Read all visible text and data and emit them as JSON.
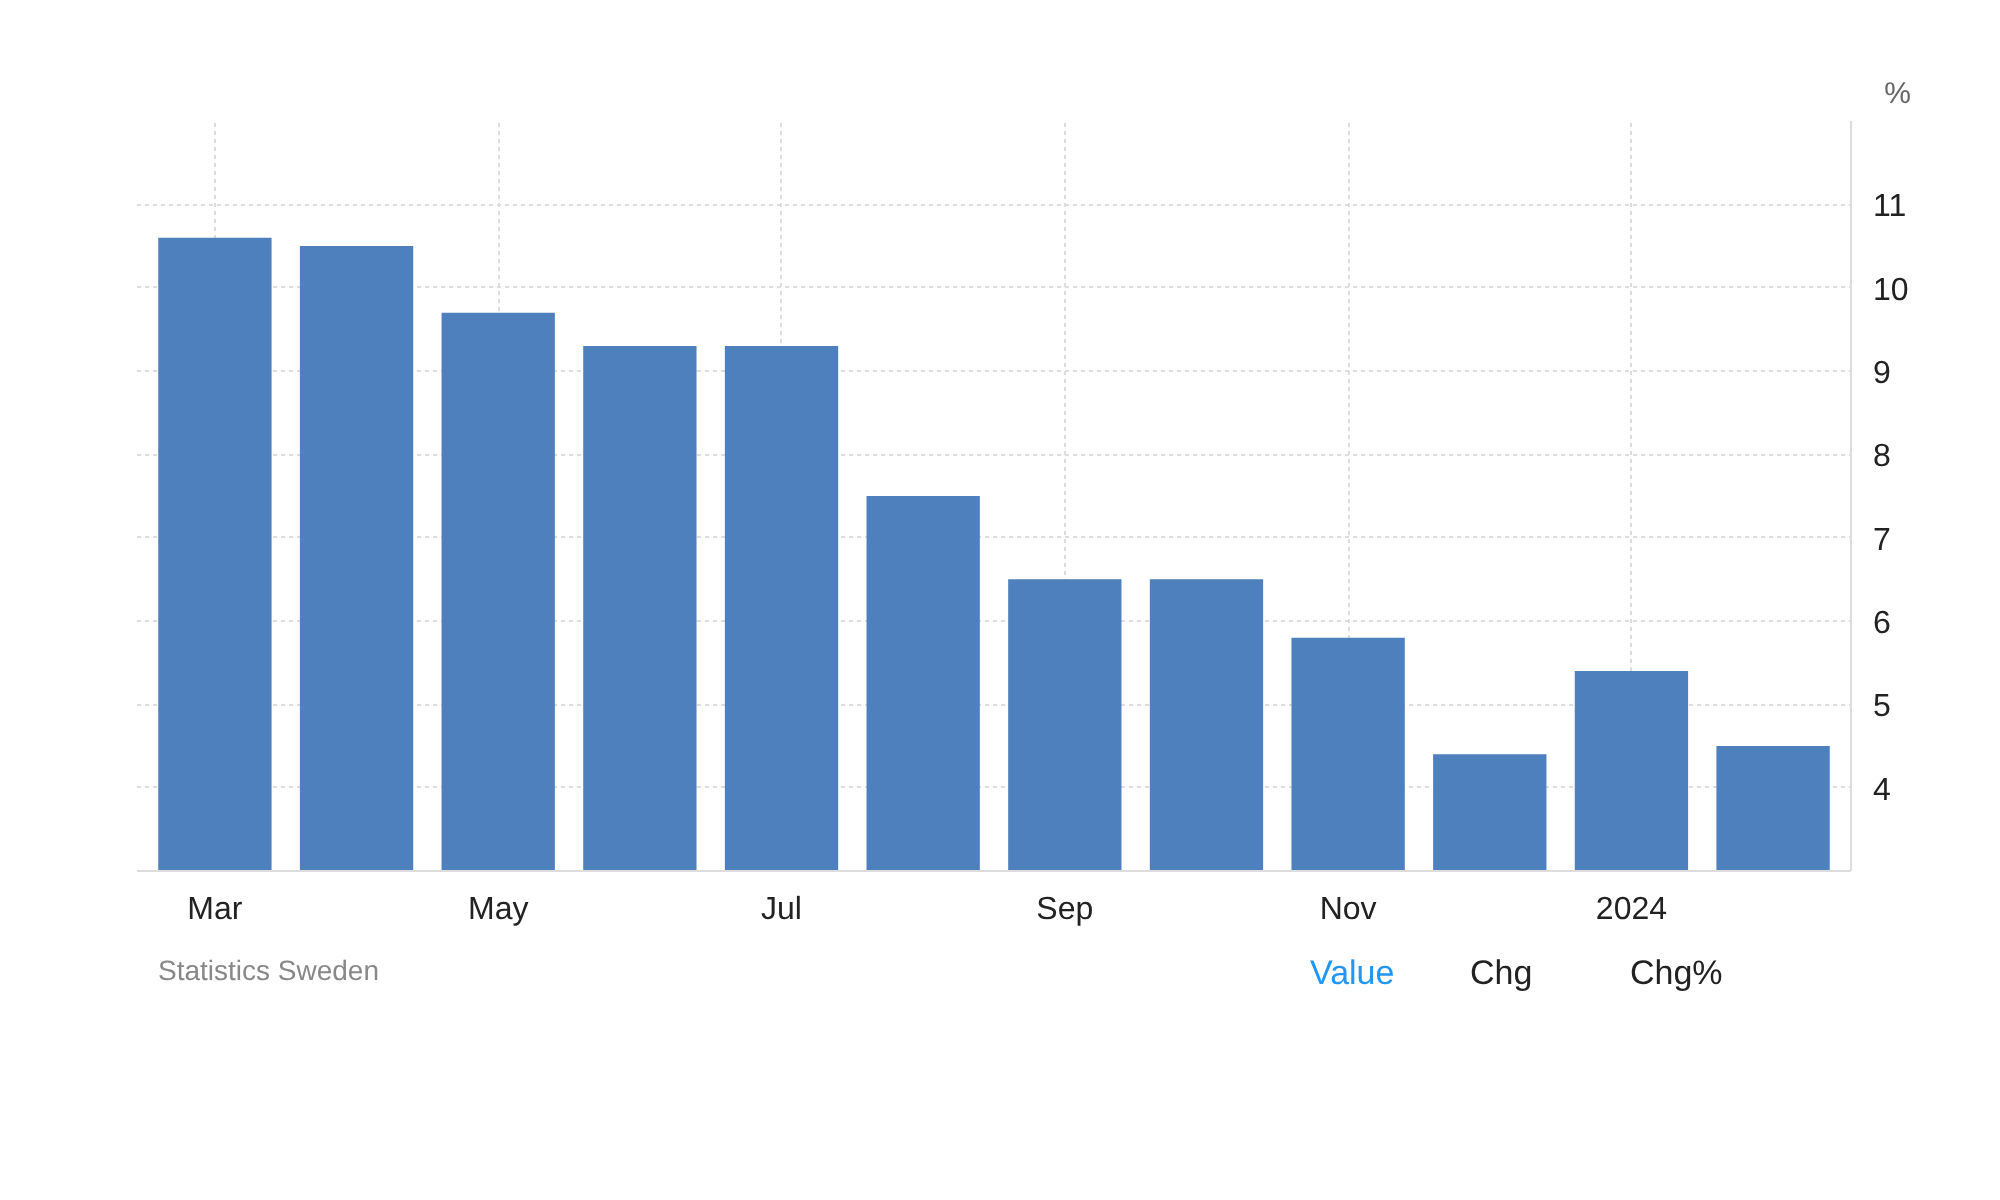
{
  "chart_data": {
    "type": "bar",
    "ylabel": "%",
    "categories": [
      "Mar",
      null,
      "May",
      null,
      "Jul",
      null,
      "Sep",
      null,
      "Nov",
      null,
      "2024",
      null
    ],
    "values": [
      10.6,
      10.5,
      9.7,
      9.3,
      9.3,
      7.5,
      6.5,
      6.5,
      5.8,
      4.4,
      5.4,
      4.5
    ],
    "color": "#4d80bd",
    "ylim": [
      3,
      12
    ],
    "yticks": [
      4,
      5,
      6,
      7,
      8,
      9,
      10,
      11
    ],
    "grid": true,
    "annotations": [
      "Statistics Sweden",
      "Value",
      "Chg",
      "Chg%"
    ]
  }
}
